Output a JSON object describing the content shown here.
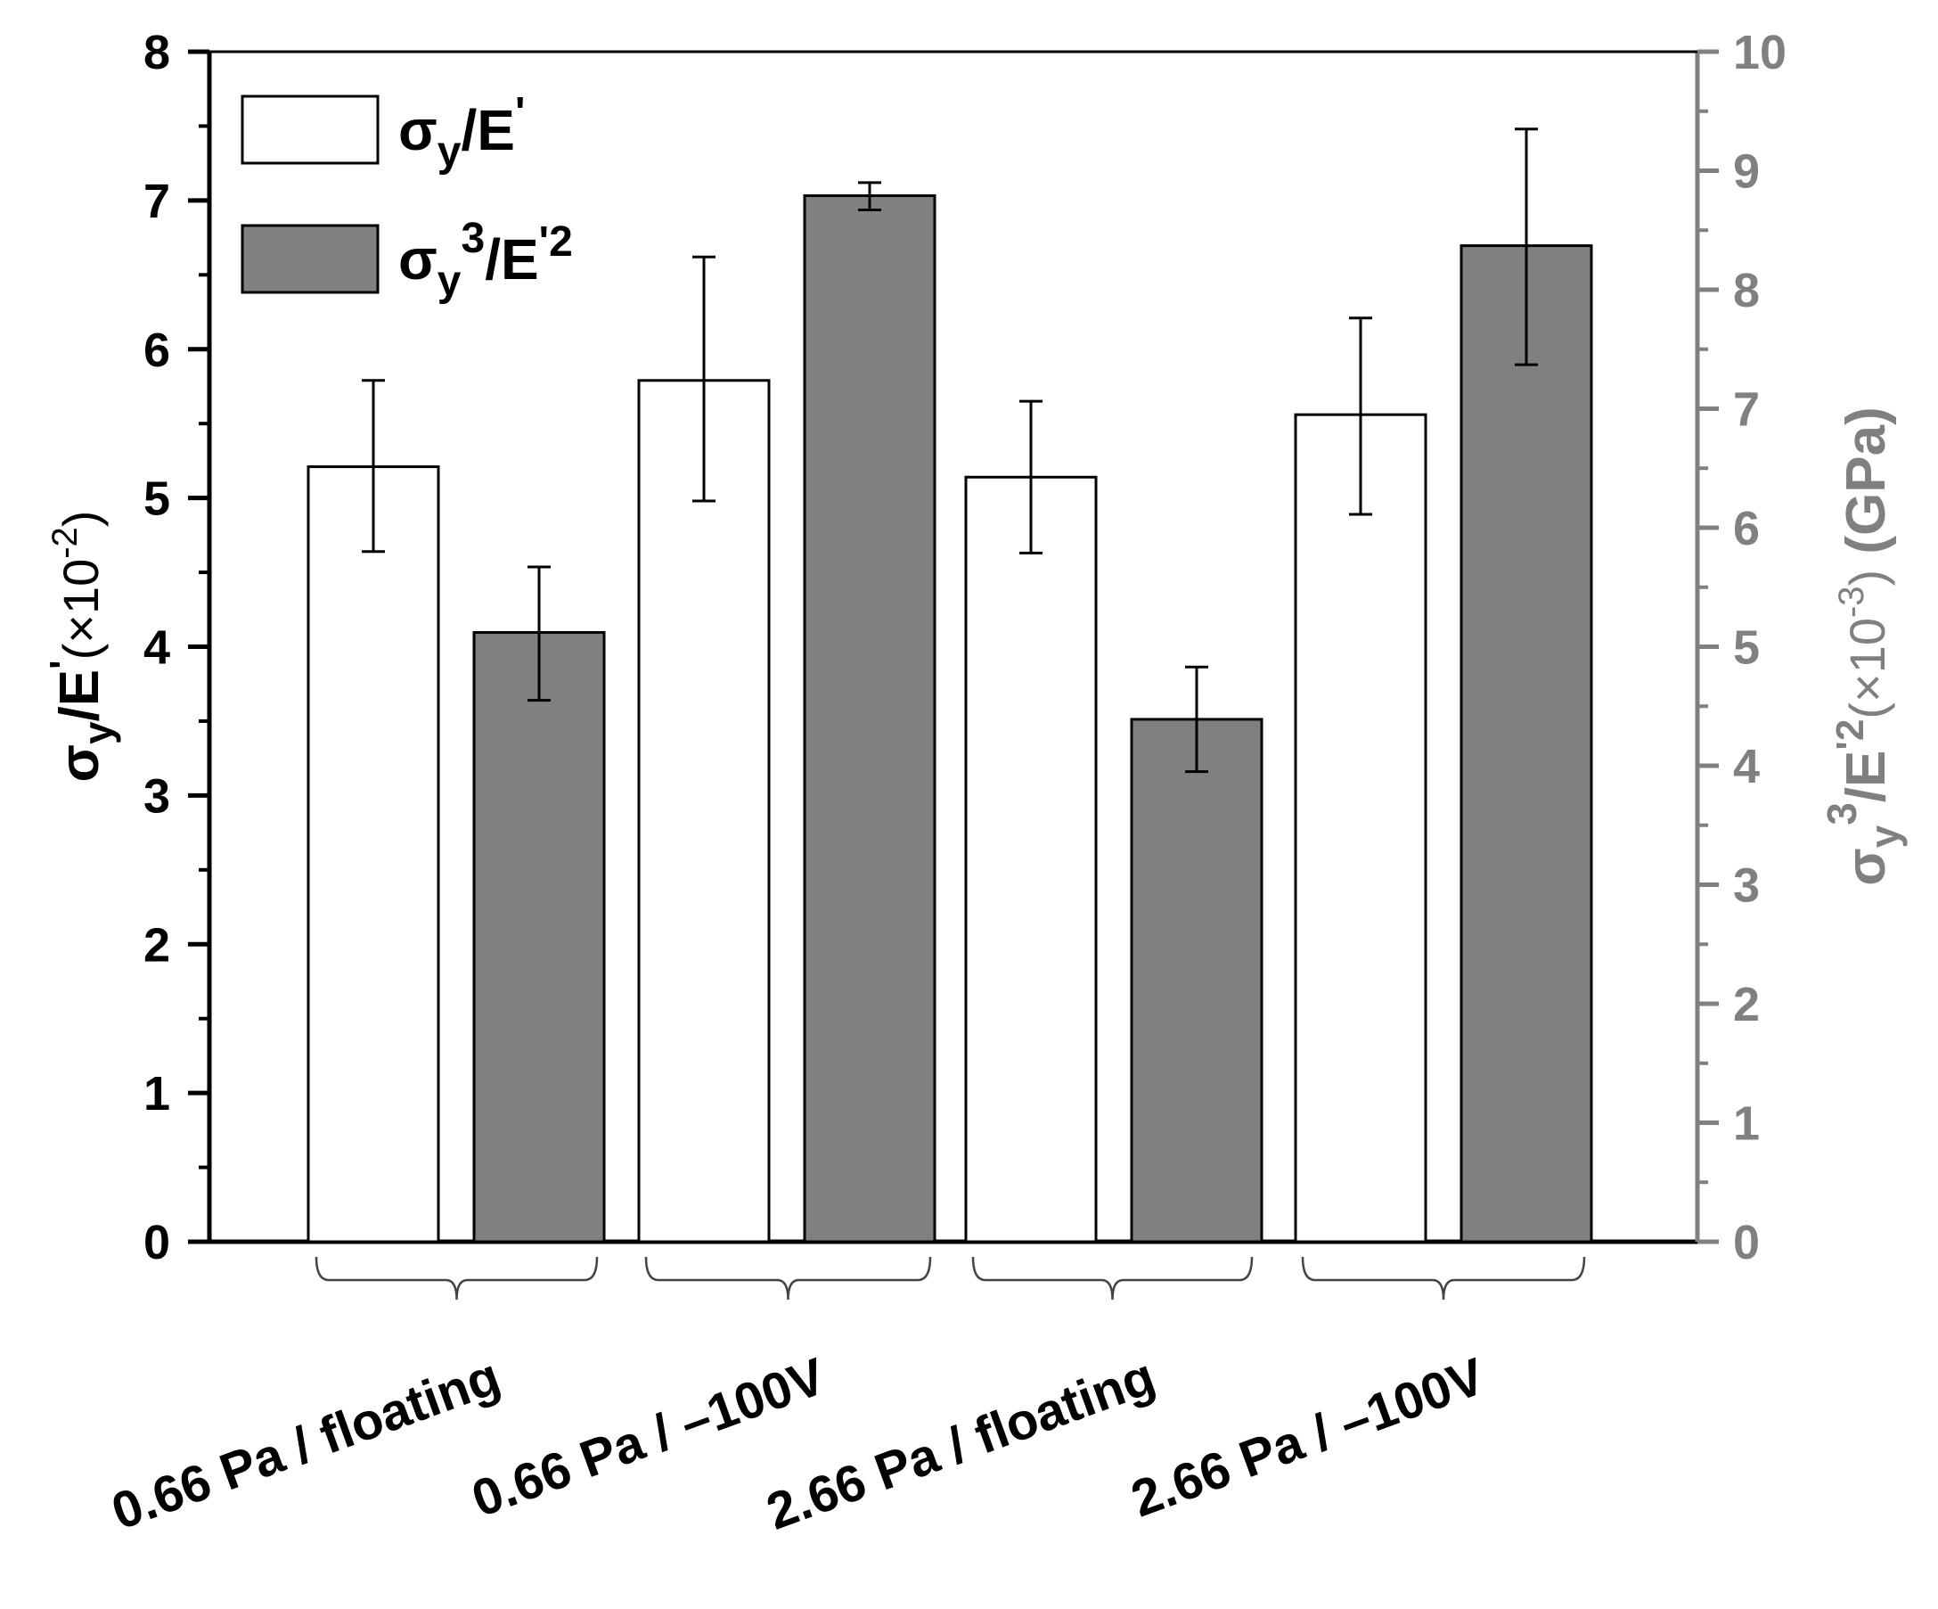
{
  "chart_data": {
    "type": "bar",
    "categories": [
      "0.66 Pa / floating",
      "0.66 Pa / –100V",
      "2.66 Pa / floating",
      "2.66 Pa / –100V"
    ],
    "series": [
      {
        "name": "σy/E'",
        "axis": "left",
        "color": "#ffffff",
        "values": [
          5.21,
          5.79,
          5.14,
          5.56
        ],
        "error_low": [
          4.64,
          4.98,
          4.63,
          4.89
        ],
        "error_high": [
          5.79,
          6.62,
          5.65,
          6.21
        ]
      },
      {
        "name": "σy³/E'²",
        "axis": "right",
        "color": "#808080",
        "values": [
          5.12,
          8.79,
          4.39,
          8.37
        ],
        "error_low": [
          4.55,
          8.67,
          3.95,
          7.37
        ],
        "error_high": [
          5.67,
          8.9,
          4.83,
          9.35
        ]
      }
    ],
    "y_left": {
      "range": [
        0,
        8
      ],
      "ticks": [
        "0",
        "1",
        "2",
        "3",
        "4",
        "5",
        "6",
        "7",
        "8"
      ],
      "label_main": "σ",
      "label_sub": "y",
      "label_rest": "/E",
      "label_prime": "'",
      "label_unit": "(×10",
      "label_unit_exp": "-2",
      "label_unit_close": ")",
      "color": "#000000"
    },
    "y_right": {
      "range": [
        0,
        10
      ],
      "ticks": [
        "0",
        "1",
        "2",
        "3",
        "4",
        "5",
        "6",
        "7",
        "8",
        "9",
        "10"
      ],
      "label_main": "σ",
      "label_sub": "y",
      "label_sup": "3",
      "label_rest": "/E",
      "label_prime_sq": "'2",
      "label_unit": "(×10",
      "label_unit_exp": "-3",
      "label_unit_close": ")",
      "label_gpa": "(GPa)",
      "color": "#808080"
    },
    "legend": {
      "position": "top-left",
      "items": [
        {
          "sigma": "σ",
          "sub": "y",
          "sup": "",
          "rest": "/E",
          "prime": "'"
        },
        {
          "sigma": "σ",
          "sub": "y",
          "sup": "3",
          "rest": "/E",
          "prime": "'2"
        }
      ]
    }
  }
}
